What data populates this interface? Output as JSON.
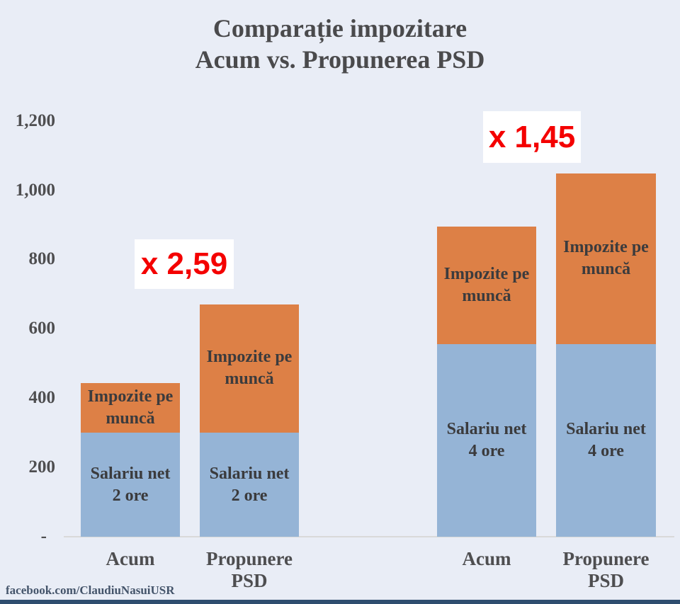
{
  "title": {
    "line1": "Comparație impozitare",
    "line2": "Acum vs. Propunerea PSD"
  },
  "footer": {
    "text": "facebook.com/ClaudiuNasuiUSR"
  },
  "colors": {
    "background": "#e9edf6",
    "salariu_net_blue": "#95b4d6",
    "impozite_orange": "#dd8046",
    "annotation_red": "#f40000",
    "text_gray": "#4e4e50",
    "bottom_band_navy": "#2e4d6f",
    "axis_line": "#d9d9d9"
  },
  "chart_data": {
    "type": "bar",
    "stacked": true,
    "title": "Comparație impozitare Acum vs. Propunerea PSD",
    "xlabel": "",
    "ylabel": "",
    "ylim": [
      0,
      1200
    ],
    "grid": false,
    "legend": "none (labels inside bars)",
    "categories": [
      "Acum",
      "Propunere PSD",
      "Acum",
      "Propunere PSD"
    ],
    "category_lines": [
      [
        "Acum"
      ],
      [
        "Propunere",
        "PSD"
      ],
      [
        "Acum"
      ],
      [
        "Propunere",
        "PSD"
      ]
    ],
    "hours_per_bar": [
      "2 ore",
      "2 ore",
      "4 ore",
      "4 ore"
    ],
    "series": [
      {
        "name": "Salariu net",
        "color": "#95b4d6",
        "values": [
          300,
          300,
          556,
          556
        ],
        "label_lines": [
          [
            "Salariu net",
            "2 ore"
          ],
          [
            "Salariu net",
            "2 ore"
          ],
          [
            "Salariu net",
            "4 ore"
          ],
          [
            "Salariu net",
            "4 ore"
          ]
        ]
      },
      {
        "name": "Impozite pe muncă",
        "color": "#dd8046",
        "values": [
          143,
          371,
          339,
          492
        ],
        "label_lines": [
          [
            "Impozite pe",
            "muncă"
          ],
          [
            "Impozite pe",
            "muncă"
          ],
          [
            "Impozite pe",
            "muncă"
          ],
          [
            "Impozite pe",
            "muncă"
          ]
        ]
      }
    ],
    "totals": [
      443,
      671,
      895,
      1048
    ],
    "yticks": [
      {
        "value": 1200,
        "label": "1,200"
      },
      {
        "value": 1000,
        "label": "1,000"
      },
      {
        "value": 800,
        "label": "800"
      },
      {
        "value": 600,
        "label": "600"
      },
      {
        "value": 400,
        "label": "400"
      },
      {
        "value": 200,
        "label": "200"
      },
      {
        "value": 0,
        "label": "-"
      }
    ],
    "annotations": [
      {
        "text": "x 2,59",
        "meaning": "Impozite Propunere PSD vs Acum (2 ore)"
      },
      {
        "text": "x 1,45",
        "meaning": "Impozite Propunere PSD vs Acum (4 ore)"
      }
    ]
  }
}
